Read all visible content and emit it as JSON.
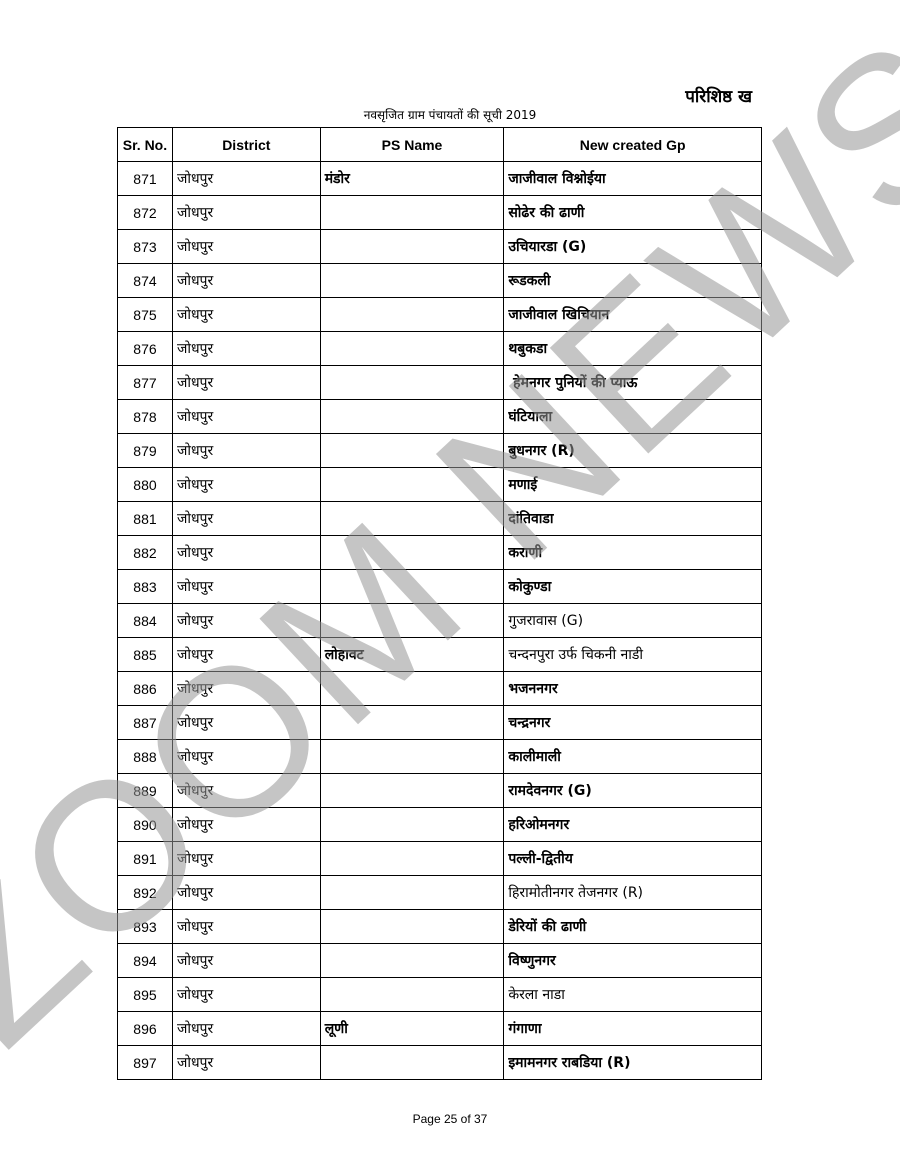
{
  "appendix_label": "परिशिष्ठ ख",
  "subtitle": "नवसृजित ग्राम पंचायतों की सूची 2019",
  "table": {
    "headers": [
      "Sr. No.",
      "District",
      "PS Name",
      "New created Gp"
    ],
    "rows": [
      {
        "sr": "871",
        "district": "जोधपुर",
        "ps": "मंडोर",
        "gp": "जाजीवाल विश्नोईया",
        "bold": true
      },
      {
        "sr": "872",
        "district": "जोधपुर",
        "ps": "",
        "gp": "सोढेर की ढाणी",
        "bold": true
      },
      {
        "sr": "873",
        "district": "जोधपुर",
        "ps": "",
        "gp": "उचियारडा (G)",
        "bold": true
      },
      {
        "sr": "874",
        "district": "जोधपुर",
        "ps": "",
        "gp": "रूडकली",
        "bold": true
      },
      {
        "sr": "875",
        "district": "जोधपुर",
        "ps": "",
        "gp": "जाजीवाल खिचियान",
        "bold": true
      },
      {
        "sr": "876",
        "district": "जोधपुर",
        "ps": "",
        "gp": "थबुकडा",
        "bold": true
      },
      {
        "sr": "877",
        "district": "जोधपुर",
        "ps": "",
        "gp": " हेमनगर पुनियों की प्याऊ",
        "bold": true
      },
      {
        "sr": "878",
        "district": "जोधपुर",
        "ps": "",
        "gp": "घंटियाला",
        "bold": true
      },
      {
        "sr": "879",
        "district": "जोधपुर",
        "ps": "",
        "gp": "बुधनगर (R)",
        "bold": true
      },
      {
        "sr": "880",
        "district": "जोधपुर",
        "ps": "",
        "gp": "मणाई",
        "bold": true
      },
      {
        "sr": "881",
        "district": "जोधपुर",
        "ps": "",
        "gp": "दांतिवाडा",
        "bold": true
      },
      {
        "sr": "882",
        "district": "जोधपुर",
        "ps": "",
        "gp": "कराणी",
        "bold": true
      },
      {
        "sr": "883",
        "district": "जोधपुर",
        "ps": "",
        "gp": "कोकुण्डा",
        "bold": true
      },
      {
        "sr": "884",
        "district": "जोधपुर",
        "ps": "",
        "gp": "गुजरावास (G)",
        "bold": false
      },
      {
        "sr": "885",
        "district": "जोधपुर",
        "ps": "लोहावट",
        "gp": "चन्दनपुरा उर्फ चिकनी नाडी",
        "bold": false
      },
      {
        "sr": "886",
        "district": "जोधपुर",
        "ps": "",
        "gp": "भजननगर",
        "bold": true
      },
      {
        "sr": "887",
        "district": "जोधपुर",
        "ps": "",
        "gp": "चन्द्रनगर",
        "bold": true
      },
      {
        "sr": "888",
        "district": "जोधपुर",
        "ps": "",
        "gp": "कालीमाली",
        "bold": true
      },
      {
        "sr": "889",
        "district": "जोधपुर",
        "ps": "",
        "gp": "रामदेवनगर (G)",
        "bold": true
      },
      {
        "sr": "890",
        "district": "जोधपुर",
        "ps": "",
        "gp": "हरिओमनगर",
        "bold": true
      },
      {
        "sr": "891",
        "district": "जोधपुर",
        "ps": "",
        "gp": "पल्ली-द्वितीय",
        "bold": true
      },
      {
        "sr": "892",
        "district": "जोधपुर",
        "ps": "",
        "gp": "हिरामोतीनगर तेजनगर (R)",
        "bold": false
      },
      {
        "sr": "893",
        "district": "जोधपुर",
        "ps": "",
        "gp": "डेरियों की ढाणी",
        "bold": true
      },
      {
        "sr": "894",
        "district": "जोधपुर",
        "ps": "",
        "gp": "विष्णुनगर",
        "bold": true
      },
      {
        "sr": "895",
        "district": "जोधपुर",
        "ps": "",
        "gp": "केरला नाडा",
        "bold": false
      },
      {
        "sr": "896",
        "district": "जोधपुर",
        "ps": "लूणी",
        "gp": "गंगाणा",
        "bold": true
      },
      {
        "sr": "897",
        "district": "जोधपुर",
        "ps": "",
        "gp": "इमामनगर राबडिया (R)",
        "bold": true
      }
    ]
  },
  "footer": "Page 25 of 37",
  "watermark": "ZOOM NEWS"
}
